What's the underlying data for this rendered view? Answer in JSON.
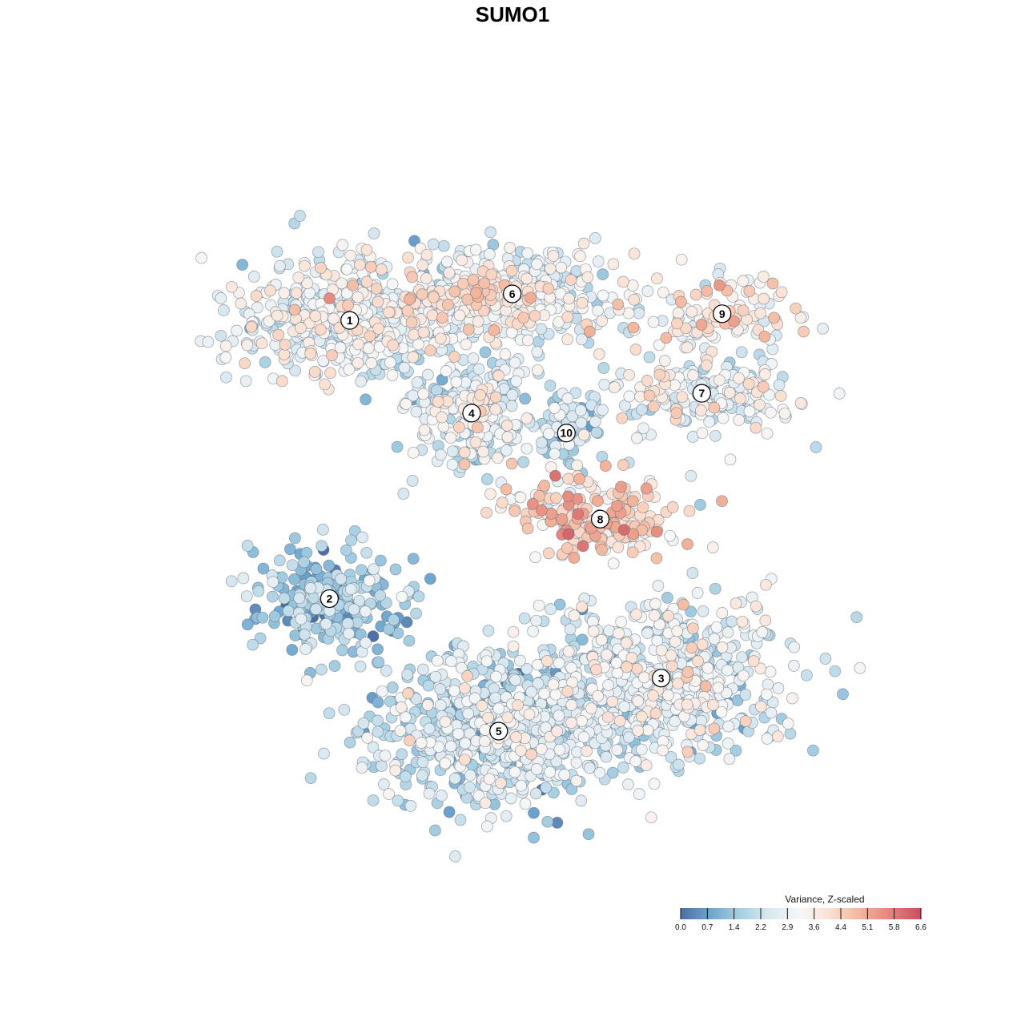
{
  "chart_data": {
    "type": "scatter",
    "title": "SUMO1",
    "xlabel": "",
    "ylabel": "",
    "grid": false,
    "colorbar": {
      "title": "Variance, Z-scaled",
      "ticks": [
        "0.0",
        "0.7",
        "1.4",
        "2.2",
        "2.9",
        "3.6",
        "4.4",
        "5.1",
        "5.8",
        "6.6"
      ],
      "range": [
        0.0,
        6.6
      ],
      "colors": [
        "#4a6fa5",
        "#6ea6cf",
        "#a8d0e3",
        "#dbe9f1",
        "#f7f7f7",
        "#fbdfd0",
        "#f2b49a",
        "#e3837a",
        "#c64f5f"
      ],
      "placement": "bottom-right"
    },
    "clusters": [
      {
        "label": "1",
        "x": -27,
        "y": 29,
        "spread": [
          9,
          5
        ],
        "n": 520,
        "value_mean": 2.9,
        "hot_spots": [
          [
            -15,
            34,
            4.4,
            7
          ],
          [
            -30,
            20,
            4.2,
            4
          ]
        ]
      },
      {
        "label": "6",
        "x": -3,
        "y": 33,
        "spread": [
          8,
          3.5
        ],
        "n": 380,
        "value_mean": 3.0,
        "hot_spots": [
          [
            -8,
            33,
            4.6,
            5
          ]
        ]
      },
      {
        "label": "9",
        "x": 28,
        "y": 30,
        "spread": [
          6,
          2.5
        ],
        "n": 110,
        "value_mean": 3.4,
        "hot_spots": [
          [
            28,
            30,
            4.2,
            5
          ]
        ]
      },
      {
        "label": "7",
        "x": 25,
        "y": 18,
        "spread": [
          8,
          3
        ],
        "n": 200,
        "value_mean": 2.9,
        "hot_spots": [
          [
            18,
            20,
            4.4,
            4
          ]
        ]
      },
      {
        "label": "4",
        "x": -9,
        "y": 15,
        "spread": [
          5,
          4
        ],
        "n": 260,
        "value_mean": 2.5,
        "hot_spots": [
          [
            -8,
            16,
            4.3,
            4
          ]
        ]
      },
      {
        "label": "10",
        "x": 5,
        "y": 12,
        "spread": [
          2.5,
          3
        ],
        "n": 60,
        "value_mean": 2.1
      },
      {
        "label": "8",
        "x": 10,
        "y": -1,
        "spread": [
          6,
          3
        ],
        "n": 200,
        "value_mean": 4.2,
        "hot_spots": [
          [
            4,
            -4,
            6.2,
            3
          ],
          [
            3,
            -12,
            5.6,
            4
          ],
          [
            12,
            0,
            5.0,
            3
          ]
        ]
      },
      {
        "label": "2",
        "x": -30,
        "y": -13,
        "spread": [
          6,
          4
        ],
        "n": 230,
        "value_mean": 1.5
      },
      {
        "label": "3",
        "x": 19,
        "y": -25,
        "spread": [
          9,
          6
        ],
        "n": 620,
        "value_mean": 2.6
      },
      {
        "label": "5",
        "x": -5,
        "y": -33,
        "spread": [
          9,
          6
        ],
        "n": 720,
        "value_mean": 2.2,
        "hot_spots": [
          [
            -2,
            -17,
            4.8,
            5
          ]
        ]
      }
    ],
    "xlim": [
      -55,
      55
    ],
    "ylim": [
      -55,
      55
    ]
  }
}
